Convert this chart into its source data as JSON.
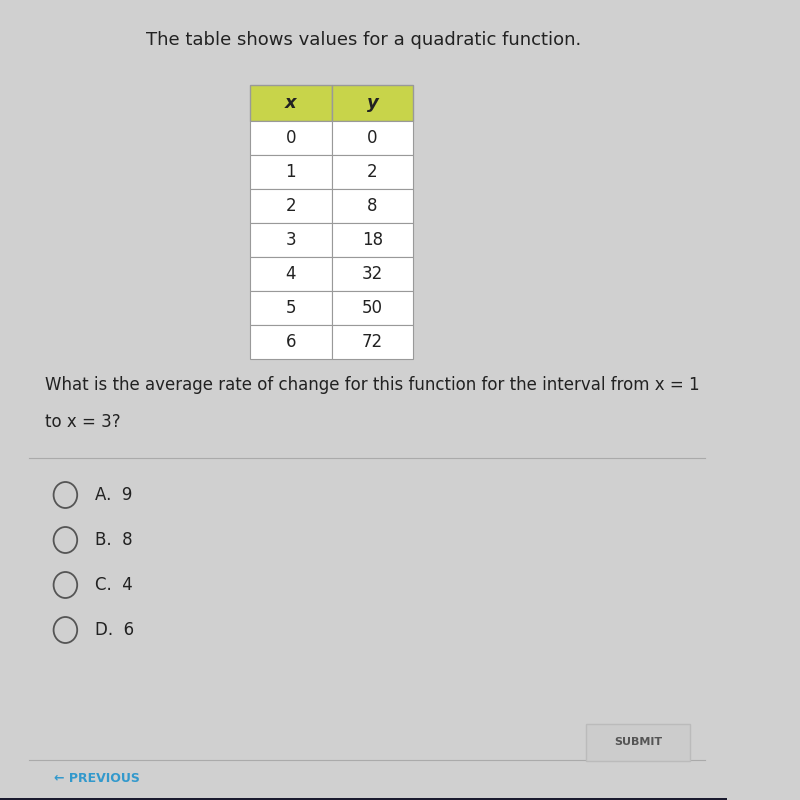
{
  "title": "The table shows values for a quadratic function.",
  "title_fontsize": 13,
  "title_color": "#222222",
  "bg_color": "#d0d0d0",
  "table_header_bg": "#c8d44a",
  "table_header_color": "#222222",
  "table_cell_bg": "#ffffff",
  "table_border_color": "#999999",
  "x_values": [
    "0",
    "1",
    "2",
    "3",
    "4",
    "5",
    "6"
  ],
  "y_values": [
    "0",
    "2",
    "8",
    "18",
    "32",
    "50",
    "72"
  ],
  "question_line1": "What is the average rate of change for this function for the interval from x = 1",
  "question_line2": "to x = 3?",
  "question_fontsize": 12,
  "choices": [
    "A.  9",
    "B.  8",
    "C.  4",
    "D.  6"
  ],
  "choice_fontsize": 12,
  "submit_label": "SUBMIT",
  "previous_label": "← PREVIOUS",
  "previous_color": "#3399cc",
  "submit_bg": "#cccccc",
  "divider_color": "#aaaaaa"
}
